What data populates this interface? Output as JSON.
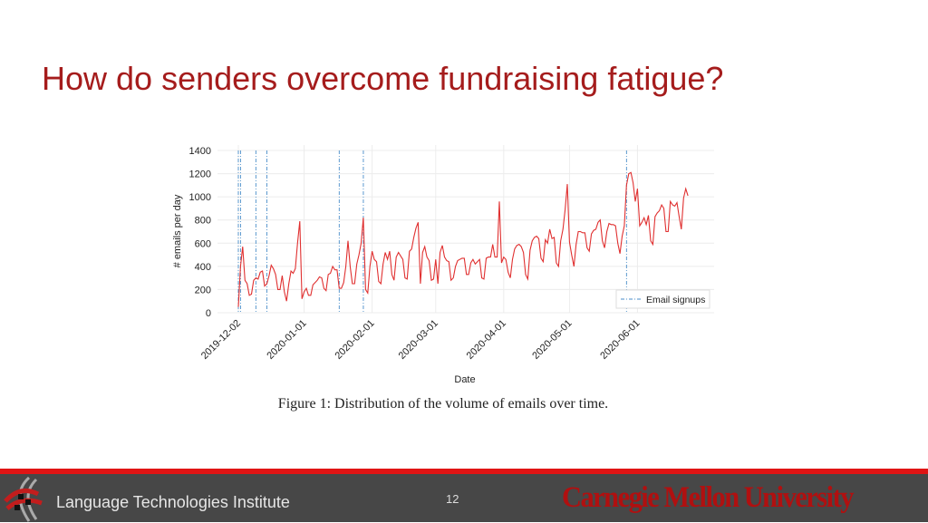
{
  "slide": {
    "title": "How do senders overcome fundraising fatigue?",
    "caption": "Figure 1: Distribution of the volume of emails over time.",
    "footer": {
      "institute": "Language Technologies Institute",
      "page_number": "12",
      "logo_text": "Carnegie Mellon University"
    },
    "colors": {
      "title": "#a51c1c",
      "footer_bar": "#e01414",
      "footer_bg": "#474747"
    }
  },
  "chart_data": {
    "type": "line",
    "xlabel": "Date",
    "ylabel": "# emails per day",
    "ylim": [
      0,
      1400
    ],
    "yticks": [
      0,
      200,
      400,
      600,
      800,
      1000,
      1200,
      1400
    ],
    "xticks": [
      "2019-12-02",
      "2020-01-01",
      "2020-02-01",
      "2020-03-01",
      "2020-04-01",
      "2020-05-01",
      "2020-06-01"
    ],
    "xlim": [
      "2019-11-25",
      "2020-06-30"
    ],
    "grid": true,
    "legend": {
      "placement": "bottom-right",
      "entries": [
        "Email signups"
      ]
    },
    "series_color": "#e03030",
    "signup_color": "#4a8ec9",
    "signups": [
      "2019-12-02",
      "2019-12-03",
      "2019-12-10",
      "2019-12-15",
      "2020-01-17",
      "2020-01-28",
      "2020-05-27"
    ],
    "x": [
      "2019-12-02",
      "2019-12-03",
      "2019-12-04",
      "2019-12-05",
      "2019-12-06",
      "2019-12-07",
      "2019-12-08",
      "2019-12-09",
      "2019-12-10",
      "2019-12-11",
      "2019-12-12",
      "2019-12-13",
      "2019-12-14",
      "2019-12-15",
      "2019-12-16",
      "2019-12-17",
      "2019-12-18",
      "2019-12-19",
      "2019-12-20",
      "2019-12-21",
      "2019-12-22",
      "2019-12-23",
      "2019-12-24",
      "2019-12-25",
      "2019-12-26",
      "2019-12-27",
      "2019-12-28",
      "2019-12-29",
      "2019-12-30",
      "2019-12-31",
      "2020-01-01",
      "2020-01-02",
      "2020-01-03",
      "2020-01-04",
      "2020-01-05",
      "2020-01-06",
      "2020-01-07",
      "2020-01-08",
      "2020-01-09",
      "2020-01-10",
      "2020-01-11",
      "2020-01-12",
      "2020-01-13",
      "2020-01-14",
      "2020-01-15",
      "2020-01-16",
      "2020-01-17",
      "2020-01-18",
      "2020-01-19",
      "2020-01-20",
      "2020-01-21",
      "2020-01-22",
      "2020-01-23",
      "2020-01-24",
      "2020-01-25",
      "2020-01-26",
      "2020-01-27",
      "2020-01-28",
      "2020-01-29",
      "2020-01-30",
      "2020-01-31",
      "2020-02-01",
      "2020-02-02",
      "2020-02-03",
      "2020-02-04",
      "2020-02-05",
      "2020-02-06",
      "2020-02-07",
      "2020-02-08",
      "2020-02-09",
      "2020-02-10",
      "2020-02-11",
      "2020-02-12",
      "2020-02-13",
      "2020-02-14",
      "2020-02-15",
      "2020-02-16",
      "2020-02-17",
      "2020-02-18",
      "2020-02-19",
      "2020-02-20",
      "2020-02-21",
      "2020-02-22",
      "2020-02-23",
      "2020-02-24",
      "2020-02-25",
      "2020-02-26",
      "2020-02-27",
      "2020-02-28",
      "2020-02-29",
      "2020-03-01",
      "2020-03-02",
      "2020-03-03",
      "2020-03-04",
      "2020-03-05",
      "2020-03-06",
      "2020-03-07",
      "2020-03-08",
      "2020-03-09",
      "2020-03-10",
      "2020-03-11",
      "2020-03-12",
      "2020-03-13",
      "2020-03-14",
      "2020-03-15",
      "2020-03-16",
      "2020-03-17",
      "2020-03-18",
      "2020-03-19",
      "2020-03-20",
      "2020-03-21",
      "2020-03-22",
      "2020-03-23",
      "2020-03-24",
      "2020-03-25",
      "2020-03-26",
      "2020-03-27",
      "2020-03-28",
      "2020-03-29",
      "2020-03-30",
      "2020-03-31",
      "2020-04-01",
      "2020-04-02",
      "2020-04-03",
      "2020-04-04",
      "2020-04-05",
      "2020-04-06",
      "2020-04-07",
      "2020-04-08",
      "2020-04-09",
      "2020-04-10",
      "2020-04-11",
      "2020-04-12",
      "2020-04-13",
      "2020-04-14",
      "2020-04-15",
      "2020-04-16",
      "2020-04-17",
      "2020-04-18",
      "2020-04-19",
      "2020-04-20",
      "2020-04-21",
      "2020-04-22",
      "2020-04-23",
      "2020-04-24",
      "2020-04-25",
      "2020-04-26",
      "2020-04-27",
      "2020-04-28",
      "2020-04-29",
      "2020-04-30",
      "2020-05-01",
      "2020-05-02",
      "2020-05-03",
      "2020-05-04",
      "2020-05-05",
      "2020-05-06",
      "2020-05-07",
      "2020-05-08",
      "2020-05-09",
      "2020-05-10",
      "2020-05-11",
      "2020-05-12",
      "2020-05-13",
      "2020-05-14",
      "2020-05-15",
      "2020-05-16",
      "2020-05-17",
      "2020-05-18",
      "2020-05-19",
      "2020-05-20",
      "2020-05-21",
      "2020-05-22",
      "2020-05-23",
      "2020-05-24",
      "2020-05-25",
      "2020-05-26",
      "2020-05-27",
      "2020-05-28",
      "2020-05-29",
      "2020-05-30",
      "2020-05-31",
      "2020-06-01",
      "2020-06-02",
      "2020-06-03",
      "2020-06-04",
      "2020-06-05",
      "2020-06-06",
      "2020-06-07",
      "2020-06-08",
      "2020-06-09",
      "2020-06-10",
      "2020-06-11",
      "2020-06-12",
      "2020-06-13",
      "2020-06-14",
      "2020-06-15",
      "2020-06-16",
      "2020-06-17",
      "2020-06-18",
      "2020-06-19",
      "2020-06-20",
      "2020-06-21",
      "2020-06-22",
      "2020-06-23",
      "2020-06-24"
    ],
    "values": [
      50,
      400,
      570,
      280,
      250,
      150,
      160,
      280,
      300,
      290,
      350,
      360,
      230,
      250,
      320,
      410,
      380,
      330,
      200,
      200,
      320,
      180,
      100,
      250,
      360,
      340,
      380,
      600,
      790,
      120,
      180,
      210,
      150,
      150,
      240,
      260,
      280,
      310,
      300,
      210,
      190,
      330,
      340,
      400,
      370,
      370,
      210,
      210,
      260,
      400,
      620,
      400,
      250,
      250,
      420,
      500,
      600,
      820,
      200,
      170,
      400,
      530,
      460,
      440,
      270,
      250,
      420,
      520,
      460,
      530,
      330,
      280,
      480,
      520,
      490,
      460,
      300,
      290,
      530,
      550,
      650,
      730,
      780,
      250,
      520,
      570,
      480,
      450,
      280,
      290,
      460,
      250,
      520,
      580,
      480,
      450,
      440,
      280,
      300,
      400,
      450,
      460,
      470,
      470,
      330,
      330,
      430,
      460,
      420,
      440,
      460,
      300,
      290,
      470,
      480,
      480,
      590,
      480,
      480,
      960,
      430,
      480,
      460,
      350,
      300,
      460,
      550,
      580,
      590,
      570,
      520,
      330,
      290,
      540,
      620,
      650,
      660,
      640,
      470,
      440,
      630,
      600,
      720,
      640,
      650,
      430,
      400,
      620,
      720,
      890,
      1110,
      610,
      500,
      400,
      590,
      700,
      700,
      690,
      690,
      560,
      530,
      680,
      710,
      720,
      780,
      800,
      620,
      560,
      700,
      770,
      760,
      760,
      750,
      600,
      510,
      660,
      750,
      1100,
      1200,
      1210,
      1120,
      960,
      1070,
      750,
      780,
      820,
      760,
      840,
      620,
      590,
      830,
      860,
      880,
      930,
      900,
      700,
      700,
      960,
      930,
      920,
      950,
      830,
      720,
      990,
      1070,
      1010
    ]
  }
}
